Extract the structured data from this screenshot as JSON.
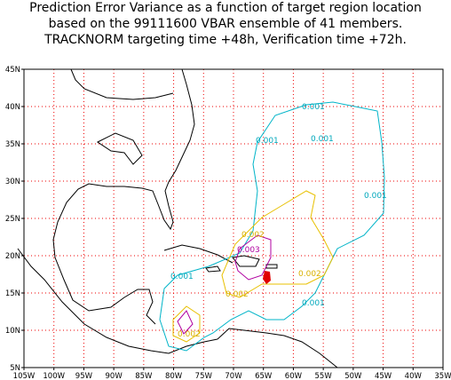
{
  "header": {
    "title_lines": [
      "Prediction Error Variance as a function of target region location",
      "based on the 99111600 VBAR ensemble of 41 members.",
      "TRACKNORM targeting time +48h, Verification time +72h."
    ]
  },
  "map": {
    "lon_labels": [
      "105W",
      "100W",
      "95W",
      "90W",
      "85W",
      "80W",
      "75W",
      "70W",
      "65W",
      "60W",
      "55W",
      "50W",
      "45W",
      "40W",
      "35W"
    ],
    "lat_labels": [
      "45N",
      "40N",
      "35N",
      "30N",
      "25N",
      "20N",
      "15N",
      "10N",
      "5N"
    ],
    "contour_labels": {
      "c001": [
        "0.001",
        "0.001",
        "0.001",
        "0.001",
        "0.001",
        "0.001"
      ],
      "c002": [
        "0.002",
        "0.002",
        "0.002",
        "0.002"
      ],
      "c003": [
        "0.003"
      ]
    }
  }
}
